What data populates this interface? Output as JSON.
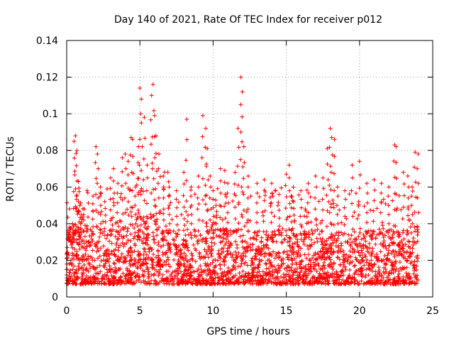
{
  "chart_data": {
    "type": "scatter",
    "title": "Day 140 of 2021, Rate Of TEC Index for receiver p012",
    "xlabel": "GPS time / hours",
    "ylabel": "ROTI / TECUs",
    "xlim": [
      0,
      25
    ],
    "ylim": [
      0,
      0.14
    ],
    "xticks": [
      "0",
      "5",
      "10",
      "15",
      "20",
      "25"
    ],
    "yticks": [
      "0",
      "0.02",
      "0.04",
      "0.06",
      "0.08",
      "0.1",
      "0.12",
      "0.14"
    ],
    "grid": true,
    "marker": "+",
    "color": "#ff0000",
    "x_range_of_data": [
      0,
      24
    ],
    "series": [
      {
        "points": [
          [
            0.0,
            0.012
          ],
          [
            0.1,
            0.035
          ],
          [
            0.2,
            0.038
          ],
          [
            0.3,
            0.03
          ],
          [
            0.4,
            0.04
          ],
          [
            0.5,
            0.085
          ],
          [
            0.6,
            0.088
          ],
          [
            0.7,
            0.08
          ],
          [
            0.8,
            0.063
          ],
          [
            0.9,
            0.05
          ],
          [
            1.0,
            0.045
          ],
          [
            1.2,
            0.048
          ],
          [
            1.5,
            0.03
          ],
          [
            1.8,
            0.055
          ],
          [
            2.0,
            0.082
          ],
          [
            2.1,
            0.078
          ],
          [
            2.3,
            0.06
          ],
          [
            2.6,
            0.052
          ],
          [
            3.0,
            0.065
          ],
          [
            3.2,
            0.07
          ],
          [
            3.5,
            0.062
          ],
          [
            3.8,
            0.076
          ],
          [
            4.0,
            0.078
          ],
          [
            4.2,
            0.074
          ],
          [
            4.4,
            0.087
          ],
          [
            4.5,
            0.086
          ],
          [
            4.7,
            0.06
          ],
          [
            4.9,
            0.082
          ],
          [
            5.0,
            0.114
          ],
          [
            5.1,
            0.108
          ],
          [
            5.3,
            0.098
          ],
          [
            5.5,
            0.072
          ],
          [
            5.8,
            0.11
          ],
          [
            5.9,
            0.116
          ],
          [
            6.0,
            0.099
          ],
          [
            6.1,
            0.088
          ],
          [
            6.3,
            0.078
          ],
          [
            6.6,
            0.066
          ],
          [
            7.0,
            0.06
          ],
          [
            7.5,
            0.058
          ],
          [
            8.0,
            0.068
          ],
          [
            8.2,
            0.097
          ],
          [
            8.5,
            0.06
          ],
          [
            9.0,
            0.066
          ],
          [
            9.3,
            0.099
          ],
          [
            9.5,
            0.092
          ],
          [
            9.6,
            0.081
          ],
          [
            9.8,
            0.066
          ],
          [
            10.0,
            0.058
          ],
          [
            10.2,
            0.05
          ],
          [
            10.5,
            0.07
          ],
          [
            10.8,
            0.069
          ],
          [
            11.0,
            0.062
          ],
          [
            11.5,
            0.068
          ],
          [
            11.7,
            0.092
          ],
          [
            11.9,
            0.12
          ],
          [
            12.0,
            0.112
          ],
          [
            12.1,
            0.082
          ],
          [
            12.4,
            0.066
          ],
          [
            13.0,
            0.062
          ],
          [
            13.5,
            0.064
          ],
          [
            14.0,
            0.062
          ],
          [
            14.5,
            0.056
          ],
          [
            15.0,
            0.067
          ],
          [
            15.2,
            0.072
          ],
          [
            15.5,
            0.052
          ],
          [
            16.0,
            0.058
          ],
          [
            16.5,
            0.062
          ],
          [
            17.0,
            0.066
          ],
          [
            17.5,
            0.065
          ],
          [
            17.8,
            0.081
          ],
          [
            18.0,
            0.092
          ],
          [
            18.1,
            0.087
          ],
          [
            18.3,
            0.086
          ],
          [
            18.5,
            0.06
          ],
          [
            19.0,
            0.058
          ],
          [
            19.5,
            0.072
          ],
          [
            20.0,
            0.074
          ],
          [
            20.5,
            0.062
          ],
          [
            21.0,
            0.064
          ],
          [
            21.5,
            0.062
          ],
          [
            22.0,
            0.06
          ],
          [
            22.4,
            0.083
          ],
          [
            22.5,
            0.082
          ],
          [
            23.0,
            0.068
          ],
          [
            23.3,
            0.066
          ],
          [
            23.6,
            0.06
          ],
          [
            23.8,
            0.079
          ],
          [
            24.0,
            0.078
          ]
        ]
      }
    ]
  }
}
